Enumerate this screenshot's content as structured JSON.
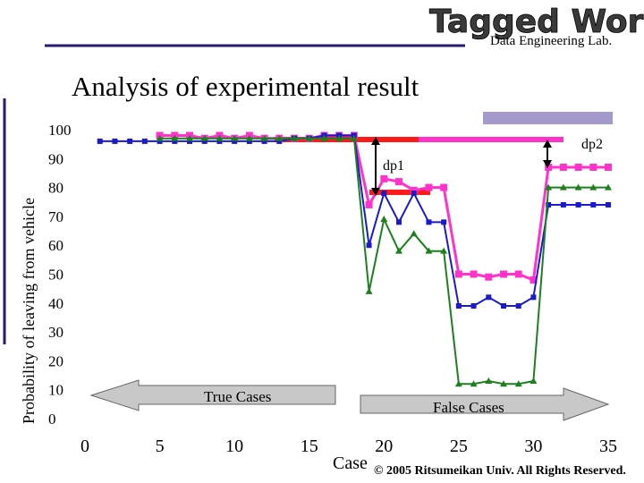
{
  "header": {
    "logo_title": "Tagged World",
    "logo_subtitle": "Data Engineering Lab."
  },
  "slide": {
    "title": "Analysis of experimental result",
    "copyright": "© 2005 Ritsumeikan Univ. All Rights Reserved."
  },
  "colors": {
    "pink": "#ff33cc",
    "blue": "#1a1acc",
    "green": "#1e7f1e",
    "red": "#ff1a1a",
    "rule": "#2a1a6e",
    "arrow_fill": "#c8c8c8",
    "accent_box": "#a699cc"
  },
  "chart_data": {
    "type": "line",
    "ylabel": "Probability of leaving from vehicle",
    "xlabel": "Case",
    "xlim": [
      0,
      35
    ],
    "ylim": [
      0,
      100
    ],
    "x_ticks": [
      "0",
      "5",
      "10",
      "15",
      "20",
      "25",
      "30",
      "35"
    ],
    "y_ticks": [
      "0",
      "10",
      "20",
      "30",
      "40",
      "50",
      "60",
      "70",
      "80",
      "90",
      "100"
    ],
    "x": [
      1,
      2,
      3,
      4,
      5,
      6,
      7,
      8,
      9,
      10,
      11,
      12,
      13,
      14,
      15,
      16,
      17,
      18,
      19,
      20,
      21,
      22,
      23,
      24,
      25,
      26,
      27,
      28,
      29,
      30,
      31,
      32,
      33,
      34,
      35
    ],
    "series": [
      {
        "color": "#ff33cc",
        "values": [
          null,
          null,
          null,
          null,
          98,
          98,
          98,
          97,
          98,
          97,
          98,
          97,
          97,
          97,
          97,
          98,
          98,
          98,
          74,
          83,
          82,
          79,
          80,
          80,
          50,
          50,
          49,
          50,
          50,
          48,
          87,
          87,
          87,
          87,
          87
        ]
      },
      {
        "color": "#1a1acc",
        "values": [
          96,
          96,
          96,
          96,
          96,
          96,
          96,
          96,
          96,
          96,
          96,
          96,
          96,
          97,
          97,
          98,
          98,
          98,
          60,
          78,
          68,
          78,
          68,
          68,
          39,
          39,
          42,
          39,
          39,
          42,
          74,
          74,
          74,
          74,
          74
        ]
      },
      {
        "color": "#1e7f1e",
        "values": [
          null,
          null,
          null,
          null,
          97,
          97,
          97,
          97,
          97,
          97,
          97,
          97,
          97,
          97,
          97,
          97,
          97,
          97,
          44,
          69,
          58,
          64,
          58,
          58,
          12,
          12,
          13,
          12,
          12,
          13,
          80,
          80,
          80,
          80,
          80
        ]
      }
    ],
    "annotations": [
      "dp1",
      "dp2",
      "True Cases",
      "False Cases"
    ]
  }
}
